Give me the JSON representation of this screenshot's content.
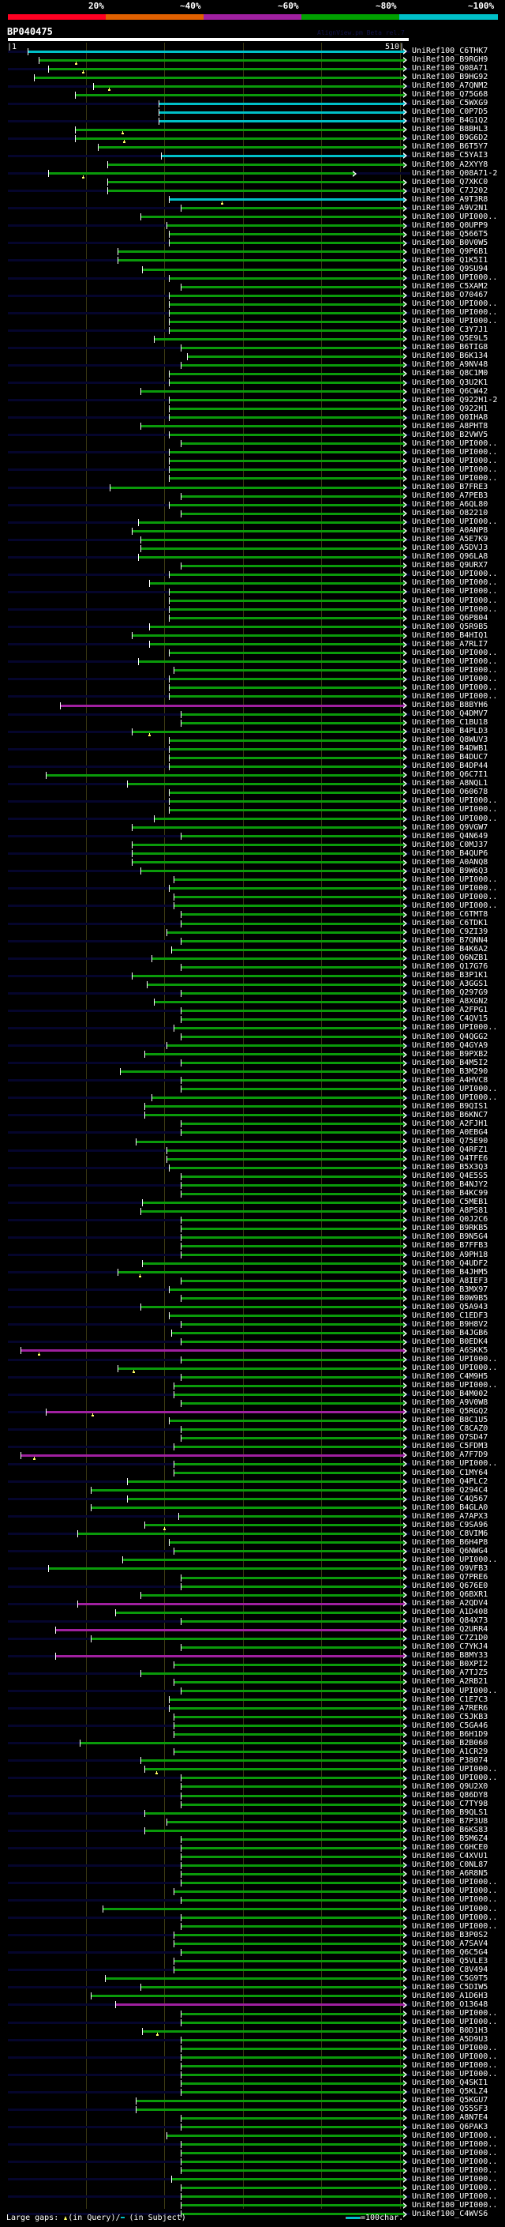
{
  "legend": {
    "labels": [
      "20%",
      "~40%",
      "~60%",
      "~80%",
      "~100%"
    ],
    "colors": [
      "#ff0022",
      "#e06000",
      "#a020a0",
      "#00a000",
      "#00c0c8"
    ]
  },
  "header": {
    "query_name": "BP040475",
    "credit": "AlignView.pm Beta rel.7",
    "ruler_start": "|1",
    "ruler_end": "510|",
    "query_length": 510
  },
  "bar_colors": {
    "c": "#00c0c8",
    "g": "#0a9a0a",
    "m": "#a020a0"
  },
  "hits": [
    [
      "UniRef100_C6THK7",
      25,
      510,
      "c"
    ],
    [
      "UniRef100_B9RGH9",
      40,
      510,
      "g",
      86
    ],
    [
      "UniRef100_Q08A71",
      52,
      510,
      "g",
      96
    ],
    [
      "UniRef100_B9HG92",
      34,
      510,
      "g"
    ],
    [
      "UniRef100_A7QNM2",
      110,
      510,
      "g",
      129
    ],
    [
      "UniRef100_Q75G68",
      86,
      510,
      "g"
    ],
    [
      "UniRef100_C5WXG9",
      194,
      510,
      "c"
    ],
    [
      "UniRef100_C0P7D5",
      194,
      510,
      "c"
    ],
    [
      "UniRef100_B4G1Q2",
      194,
      510,
      "c"
    ],
    [
      "UniRef100_B8BHL3",
      86,
      510,
      "g",
      146
    ],
    [
      "UniRef100_B9G6D2",
      86,
      510,
      "g",
      148
    ],
    [
      "UniRef100_B6T5Y7",
      116,
      510,
      "g"
    ],
    [
      "UniRef100_C5YAI3",
      197,
      510,
      "c"
    ],
    [
      "UniRef100_A2XYY8",
      128,
      510,
      "g"
    ],
    [
      "UniRef100_Q08A71-2",
      52,
      445,
      "g",
      96
    ],
    [
      "UniRef100_Q7XKC0",
      128,
      510,
      "g"
    ],
    [
      "UniRef100_C7J202",
      128,
      510,
      "g"
    ],
    [
      "UniRef100_A9T3R8",
      207,
      510,
      "c",
      274
    ],
    [
      "UniRef100_A9V2N1",
      222,
      510,
      "g"
    ],
    [
      "UniRef100_UPI000..",
      171,
      510,
      "g"
    ],
    [
      "UniRef100_Q0UPP9",
      204,
      510,
      "g"
    ],
    [
      "UniRef100_Q566T5",
      207,
      510,
      "g"
    ],
    [
      "UniRef100_B0V0W5",
      207,
      510,
      "g"
    ],
    [
      "UniRef100_Q9P6B1",
      141,
      510,
      "g"
    ],
    [
      "UniRef100_Q1K5I1",
      141,
      510,
      "g"
    ],
    [
      "UniRef100_Q9SU94",
      173,
      510,
      "g"
    ],
    [
      "UniRef100_UPI000..",
      207,
      510,
      "g"
    ],
    [
      "UniRef100_C5XAM2",
      222,
      510,
      "g"
    ],
    [
      "UniRef100_O70467",
      207,
      510,
      "g"
    ],
    [
      "UniRef100_UPI000..",
      207,
      510,
      "g"
    ],
    [
      "UniRef100_UPI000..",
      207,
      510,
      "g"
    ],
    [
      "UniRef100_UPI000..",
      207,
      510,
      "g"
    ],
    [
      "UniRef100_C3Y7J1",
      207,
      510,
      "g"
    ],
    [
      "UniRef100_Q5E9L5",
      188,
      510,
      "g"
    ],
    [
      "UniRef100_B6TIG8",
      222,
      510,
      "g"
    ],
    [
      "UniRef100_B6K134",
      231,
      510,
      "g"
    ],
    [
      "UniRef100_A9NV48",
      222,
      510,
      "g"
    ],
    [
      "UniRef100_Q8C1M0",
      207,
      510,
      "g"
    ],
    [
      "UniRef100_Q3U2K1",
      207,
      510,
      "g"
    ],
    [
      "UniRef100_Q6CW42",
      171,
      510,
      "g"
    ],
    [
      "UniRef100_Q922H1-2",
      207,
      510,
      "g"
    ],
    [
      "UniRef100_Q922H1",
      207,
      510,
      "g"
    ],
    [
      "UniRef100_Q0IHA8",
      207,
      510,
      "g"
    ],
    [
      "UniRef100_A8PHT8",
      171,
      510,
      "g"
    ],
    [
      "UniRef100_B2VWV5",
      207,
      510,
      "g"
    ],
    [
      "UniRef100_UPI000..",
      222,
      510,
      "g"
    ],
    [
      "UniRef100_UPI000..",
      207,
      510,
      "g"
    ],
    [
      "UniRef100_UPI000..",
      207,
      510,
      "g"
    ],
    [
      "UniRef100_UPI000..",
      207,
      510,
      "g"
    ],
    [
      "UniRef100_UPI000..",
      207,
      510,
      "g"
    ],
    [
      "UniRef100_B7FRE3",
      131,
      510,
      "g"
    ],
    [
      "UniRef100_A7PEB3",
      222,
      510,
      "g"
    ],
    [
      "UniRef100_A6QL80",
      207,
      510,
      "g"
    ],
    [
      "UniRef100_O82210",
      222,
      510,
      "g"
    ],
    [
      "UniRef100_UPI000..",
      168,
      510,
      "g"
    ],
    [
      "UniRef100_A0ANP8",
      159,
      510,
      "g"
    ],
    [
      "UniRef100_A5E7K9",
      171,
      510,
      "g"
    ],
    [
      "UniRef100_A5DVJ3",
      171,
      510,
      "g"
    ],
    [
      "UniRef100_Q96LA8",
      168,
      510,
      "g"
    ],
    [
      "UniRef100_Q9URX7",
      222,
      510,
      "g"
    ],
    [
      "UniRef100_UPI000..",
      207,
      510,
      "g"
    ],
    [
      "UniRef100_UPI000..",
      182,
      510,
      "g"
    ],
    [
      "UniRef100_UPI000..",
      207,
      510,
      "g"
    ],
    [
      "UniRef100_UPI000..",
      207,
      510,
      "g"
    ],
    [
      "UniRef100_UPI000..",
      207,
      510,
      "g"
    ],
    [
      "UniRef100_Q6P804",
      207,
      510,
      "g"
    ],
    [
      "UniRef100_Q5R9B5",
      182,
      510,
      "g"
    ],
    [
      "UniRef100_B4HIQ1",
      159,
      510,
      "g"
    ],
    [
      "UniRef100_A7RLI7",
      182,
      510,
      "g"
    ],
    [
      "UniRef100_UPI000..",
      207,
      510,
      "g"
    ],
    [
      "UniRef100_UPI000..",
      168,
      510,
      "g"
    ],
    [
      "UniRef100_UPI000..",
      213,
      510,
      "g"
    ],
    [
      "UniRef100_UPI000..",
      207,
      510,
      "g"
    ],
    [
      "UniRef100_UPI000..",
      207,
      510,
      "g"
    ],
    [
      "UniRef100_UPI000..",
      207,
      510,
      "g"
    ],
    [
      "UniRef100_B8BYH6",
      67,
      510,
      "m"
    ],
    [
      "UniRef100_Q4DMV7",
      222,
      510,
      "g"
    ],
    [
      "UniRef100_C1BU18",
      222,
      510,
      "g"
    ],
    [
      "UniRef100_B4PLD3",
      159,
      510,
      "g",
      181
    ],
    [
      "UniRef100_Q8WUV3",
      207,
      510,
      "g"
    ],
    [
      "UniRef100_B4DWB1",
      207,
      510,
      "g"
    ],
    [
      "UniRef100_B4DUC7",
      207,
      510,
      "g"
    ],
    [
      "UniRef100_B4DP44",
      207,
      510,
      "g"
    ],
    [
      "UniRef100_Q6C7I1",
      49,
      510,
      "g"
    ],
    [
      "UniRef100_A8NQL1",
      153,
      510,
      "g"
    ],
    [
      "UniRef100_O60678",
      207,
      510,
      "g"
    ],
    [
      "UniRef100_UPI000..",
      207,
      510,
      "g"
    ],
    [
      "UniRef100_UPI000..",
      207,
      510,
      "g"
    ],
    [
      "UniRef100_UPI000..",
      188,
      510,
      "g"
    ],
    [
      "UniRef100_Q9VGW7",
      159,
      510,
      "g"
    ],
    [
      "UniRef100_Q4N649",
      222,
      510,
      "g"
    ],
    [
      "UniRef100_C0MJ37",
      159,
      510,
      "g"
    ],
    [
      "UniRef100_B4QUP6",
      159,
      510,
      "g"
    ],
    [
      "UniRef100_A0ANQ8",
      159,
      510,
      "g"
    ],
    [
      "UniRef100_B9W6Q3",
      171,
      510,
      "g"
    ],
    [
      "UniRef100_UPI000..",
      213,
      510,
      "g"
    ],
    [
      "UniRef100_UPI000..",
      207,
      510,
      "g"
    ],
    [
      "UniRef100_UPI000..",
      213,
      510,
      "g"
    ],
    [
      "UniRef100_UPI000..",
      213,
      510,
      "g"
    ],
    [
      "UniRef100_C6TMT8",
      222,
      510,
      "g"
    ],
    [
      "UniRef100_C6TDK1",
      222,
      510,
      "g"
    ],
    [
      "UniRef100_C9ZI39",
      204,
      510,
      "g"
    ],
    [
      "UniRef100_B7QNN4",
      222,
      510,
      "g"
    ],
    [
      "UniRef100_B4K6A2",
      210,
      510,
      "g"
    ],
    [
      "UniRef100_Q6NZB1",
      185,
      510,
      "g"
    ],
    [
      "UniRef100_Q17G76",
      222,
      510,
      "g"
    ],
    [
      "UniRef100_B3P1K1",
      159,
      510,
      "g"
    ],
    [
      "UniRef100_A3GGS1",
      179,
      510,
      "g"
    ],
    [
      "UniRef100_Q297G9",
      222,
      510,
      "g"
    ],
    [
      "UniRef100_A8XGN2",
      188,
      510,
      "g"
    ],
    [
      "UniRef100_A2FPG1",
      222,
      510,
      "g"
    ],
    [
      "UniRef100_C4QV15",
      222,
      510,
      "g"
    ],
    [
      "UniRef100_UPI000..",
      213,
      510,
      "g"
    ],
    [
      "UniRef100_Q4QGG2",
      222,
      510,
      "g"
    ],
    [
      "UniRef100_Q4GYA9",
      204,
      510,
      "g"
    ],
    [
      "UniRef100_B9PXB2",
      176,
      510,
      "g"
    ],
    [
      "UniRef100_B4M5I2",
      222,
      510,
      "g"
    ],
    [
      "UniRef100_B3M290",
      144,
      510,
      "g"
    ],
    [
      "UniRef100_A4HVC8",
      222,
      510,
      "g"
    ],
    [
      "UniRef100_UPI000..",
      222,
      510,
      "g"
    ],
    [
      "UniRef100_UPI000..",
      185,
      510,
      "g"
    ],
    [
      "UniRef100_B9QIS1",
      176,
      510,
      "g"
    ],
    [
      "UniRef100_B6KNC7",
      176,
      510,
      "g"
    ],
    [
      "UniRef100_A2FJH1",
      222,
      510,
      "g"
    ],
    [
      "UniRef100_A0EBG4",
      222,
      510,
      "g"
    ],
    [
      "UniRef100_Q75E90",
      165,
      510,
      "g"
    ],
    [
      "UniRef100_Q4RFZ1",
      204,
      510,
      "g"
    ],
    [
      "UniRef100_Q4TFE6",
      204,
      510,
      "g"
    ],
    [
      "UniRef100_B5X3Q3",
      207,
      510,
      "g"
    ],
    [
      "UniRef100_Q4E5S5",
      222,
      510,
      "g"
    ],
    [
      "UniRef100_B4NJY2",
      222,
      510,
      "g"
    ],
    [
      "UniRef100_B4KC99",
      222,
      510,
      "g"
    ],
    [
      "UniRef100_C5MEB1",
      173,
      510,
      "g"
    ],
    [
      "UniRef100_A8PS81",
      171,
      510,
      "g"
    ],
    [
      "UniRef100_Q0J2C6",
      222,
      510,
      "g"
    ],
    [
      "UniRef100_B9RKB5",
      222,
      510,
      "g"
    ],
    [
      "UniRef100_B9N5G4",
      222,
      510,
      "g"
    ],
    [
      "UniRef100_B7FFB3",
      222,
      510,
      "g"
    ],
    [
      "UniRef100_A9PH18",
      222,
      510,
      "g"
    ],
    [
      "UniRef100_Q4UDF2",
      173,
      510,
      "g"
    ],
    [
      "UniRef100_B4JHM5",
      141,
      510,
      "g",
      169
    ],
    [
      "UniRef100_A8IEF3",
      222,
      510,
      "g"
    ],
    [
      "UniRef100_B3MX97",
      207,
      510,
      "g"
    ],
    [
      "UniRef100_B0W9B5",
      222,
      510,
      "g"
    ],
    [
      "UniRef100_Q5A943",
      171,
      510,
      "g"
    ],
    [
      "UniRef100_C1EDF3",
      207,
      510,
      "g"
    ],
    [
      "UniRef100_B9H8V2",
      222,
      510,
      "g"
    ],
    [
      "UniRef100_B4JGB6",
      210,
      510,
      "g"
    ],
    [
      "UniRef100_B0EDK4",
      222,
      510,
      "g"
    ],
    [
      "UniRef100_A6SKK5",
      16,
      510,
      "m",
      39
    ],
    [
      "UniRef100_UPI000..",
      222,
      510,
      "g"
    ],
    [
      "UniRef100_UPI000..",
      141,
      510,
      "g",
      161
    ],
    [
      "UniRef100_C4M9H5",
      222,
      510,
      "g"
    ],
    [
      "UniRef100_UPI000..",
      213,
      510,
      "g"
    ],
    [
      "UniRef100_B4M002",
      213,
      510,
      "g"
    ],
    [
      "UniRef100_A9V0W8",
      222,
      510,
      "g"
    ],
    [
      "UniRef100_Q5RGQ2",
      49,
      510,
      "m",
      108
    ],
    [
      "UniRef100_B8C1U5",
      207,
      510,
      "g"
    ],
    [
      "UniRef100_C8CAZ0",
      222,
      510,
      "g"
    ],
    [
      "UniRef100_Q7SD47",
      222,
      510,
      "g"
    ],
    [
      "UniRef100_C5FDM3",
      213,
      510,
      "g"
    ],
    [
      "UniRef100_A7F7D9",
      16,
      510,
      "m",
      33
    ],
    [
      "UniRef100_UPI000..",
      213,
      510,
      "g"
    ],
    [
      "UniRef100_C1MY64",
      213,
      510,
      "g"
    ],
    [
      "UniRef100_Q4PLC2",
      153,
      510,
      "g"
    ],
    [
      "UniRef100_Q294C4",
      107,
      510,
      "g"
    ],
    [
      "UniRef100_C4Q567",
      153,
      510,
      "g"
    ],
    [
      "UniRef100_B4GLA0",
      107,
      510,
      "g"
    ],
    [
      "UniRef100_A7APX3",
      219,
      510,
      "g"
    ],
    [
      "UniRef100_C9SA96",
      176,
      510,
      "g",
      200
    ],
    [
      "UniRef100_C8VIM6",
      89,
      510,
      "g"
    ],
    [
      "UniRef100_B6H4P8",
      207,
      510,
      "g"
    ],
    [
      "UniRef100_Q6NWG4",
      213,
      510,
      "g"
    ],
    [
      "UniRef100_UPI000..",
      147,
      510,
      "g"
    ],
    [
      "UniRef100_Q9VFB3",
      52,
      510,
      "g"
    ],
    [
      "UniRef100_Q7PRE6",
      222,
      510,
      "g"
    ],
    [
      "UniRef100_Q676E0",
      222,
      510,
      "g"
    ],
    [
      "UniRef100_Q6BXR1",
      171,
      510,
      "g"
    ],
    [
      "UniRef100_A2QDV4",
      89,
      510,
      "m"
    ],
    [
      "UniRef100_A1D408",
      138,
      510,
      "g"
    ],
    [
      "UniRef100_Q84X73",
      222,
      510,
      "g"
    ],
    [
      "UniRef100_Q2URR4",
      61,
      510,
      "m"
    ],
    [
      "UniRef100_C7Z1D0",
      107,
      510,
      "g"
    ],
    [
      "UniRef100_C7YKJ4",
      222,
      510,
      "g"
    ],
    [
      "UniRef100_B8MY33",
      61,
      510,
      "m"
    ],
    [
      "UniRef100_B0XPI2",
      213,
      510,
      "g"
    ],
    [
      "UniRef100_A7TJZ5",
      171,
      510,
      "g"
    ],
    [
      "UniRef100_A2RB21",
      213,
      510,
      "g"
    ],
    [
      "UniRef100_UPI000..",
      222,
      510,
      "g"
    ],
    [
      "UniRef100_C1E7C3",
      207,
      510,
      "g"
    ],
    [
      "UniRef100_A7RER6",
      207,
      510,
      "g"
    ],
    [
      "UniRef100_C5JKB3",
      213,
      510,
      "g"
    ],
    [
      "UniRef100_C5GA46",
      213,
      510,
      "g"
    ],
    [
      "UniRef100_B6H1D9",
      213,
      510,
      "g"
    ],
    [
      "UniRef100_B2B060",
      92,
      510,
      "g"
    ],
    [
      "UniRef100_A1CR29",
      213,
      510,
      "g"
    ],
    [
      "UniRef100_P38074",
      171,
      510,
      "g"
    ],
    [
      "UniRef100_UPI000..",
      176,
      510,
      "g",
      190
    ],
    [
      "UniRef100_UPI000..",
      222,
      510,
      "g"
    ],
    [
      "UniRef100_Q9U2X0",
      222,
      510,
      "g"
    ],
    [
      "UniRef100_Q86DY8",
      222,
      510,
      "g"
    ],
    [
      "UniRef100_C7TY98",
      222,
      510,
      "g"
    ],
    [
      "UniRef100_B9QLS1",
      176,
      510,
      "g"
    ],
    [
      "UniRef100_B7P3U8",
      204,
      510,
      "g"
    ],
    [
      "UniRef100_B6KS83",
      176,
      510,
      "g"
    ],
    [
      "UniRef100_B5M6Z4",
      222,
      510,
      "g"
    ],
    [
      "UniRef100_C6HCE0",
      222,
      510,
      "g"
    ],
    [
      "UniRef100_C4XVU1",
      222,
      510,
      "g"
    ],
    [
      "UniRef100_C0NL87",
      222,
      510,
      "g"
    ],
    [
      "UniRef100_A6R8N5",
      222,
      510,
      "g"
    ],
    [
      "UniRef100_UPI000..",
      222,
      510,
      "g"
    ],
    [
      "UniRef100_UPI000..",
      213,
      510,
      "g"
    ],
    [
      "UniRef100_UPI000..",
      222,
      510,
      "g"
    ],
    [
      "UniRef100_UPI000..",
      122,
      510,
      "g"
    ],
    [
      "UniRef100_UPI000..",
      222,
      510,
      "g"
    ],
    [
      "UniRef100_UPI000..",
      222,
      510,
      "g"
    ],
    [
      "UniRef100_B3P0S2",
      213,
      510,
      "g"
    ],
    [
      "UniRef100_A7SAV4",
      213,
      510,
      "g"
    ],
    [
      "UniRef100_Q6C5G4",
      222,
      510,
      "g"
    ],
    [
      "UniRef100_Q5VLE3",
      213,
      510,
      "g"
    ],
    [
      "UniRef100_C8V494",
      213,
      510,
      "g"
    ],
    [
      "UniRef100_C5G9T5",
      125,
      510,
      "g"
    ],
    [
      "UniRef100_C5DIW5",
      171,
      510,
      "g"
    ],
    [
      "UniRef100_A1D6H3",
      107,
      510,
      "g"
    ],
    [
      "UniRef100_O13648",
      138,
      510,
      "m"
    ],
    [
      "UniRef100_UPI000..",
      222,
      510,
      "g"
    ],
    [
      "UniRef100_UPI000..",
      222,
      510,
      "g"
    ],
    [
      "UniRef100_B0D1H3",
      173,
      510,
      "g",
      191
    ],
    [
      "UniRef100_A5D9U3",
      222,
      510,
      "g"
    ],
    [
      "UniRef100_UPI000..",
      222,
      510,
      "g"
    ],
    [
      "UniRef100_UPI000..",
      222,
      510,
      "g"
    ],
    [
      "UniRef100_UPI000..",
      222,
      510,
      "g"
    ],
    [
      "UniRef100_UPI000..",
      222,
      510,
      "g"
    ],
    [
      "UniRef100_Q4SKI1",
      222,
      510,
      "g"
    ],
    [
      "UniRef100_Q5KLZ4",
      222,
      510,
      "g"
    ],
    [
      "UniRef100_Q5KGU7",
      165,
      510,
      "g"
    ],
    [
      "UniRef100_Q55SF3",
      165,
      510,
      "g"
    ],
    [
      "UniRef100_A8N7E4",
      222,
      510,
      "g"
    ],
    [
      "UniRef100_Q6PAK3",
      222,
      510,
      "g"
    ],
    [
      "UniRef100_UPI000..",
      204,
      510,
      "g"
    ],
    [
      "UniRef100_UPI000..",
      222,
      510,
      "g"
    ],
    [
      "UniRef100_UPI000..",
      222,
      510,
      "g"
    ],
    [
      "UniRef100_UPI000..",
      222,
      510,
      "g"
    ],
    [
      "UniRef100_UPI000..",
      222,
      510,
      "g"
    ],
    [
      "UniRef100_UPI000..",
      210,
      510,
      "g"
    ],
    [
      "UniRef100_UPI000..",
      222,
      510,
      "g"
    ],
    [
      "UniRef100_UPI000..",
      222,
      510,
      "g"
    ],
    [
      "UniRef100_UPI000..",
      222,
      510,
      "g"
    ],
    [
      "UniRef100_C4WVS6",
      222,
      510,
      "g"
    ]
  ],
  "footer": {
    "gaps_label": "Large gaps:",
    "query_gap": "(in Query)/",
    "subject_gap": "(in Subject)",
    "scale_label": "=100char."
  }
}
